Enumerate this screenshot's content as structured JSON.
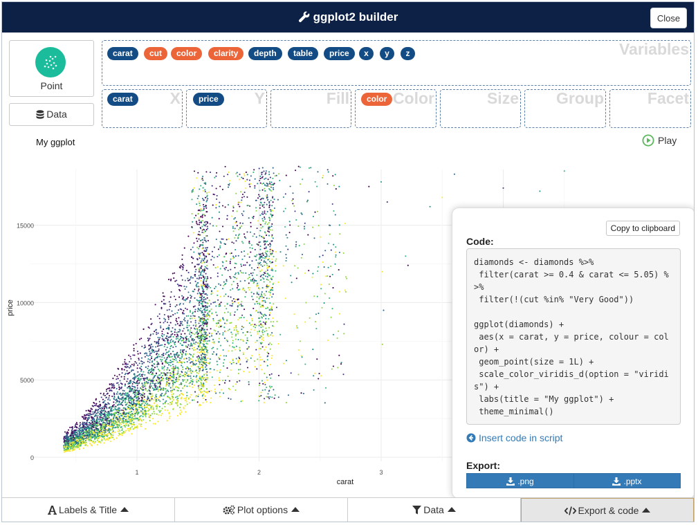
{
  "header": {
    "title": "ggplot2 builder",
    "close_label": "Close"
  },
  "left": {
    "geom_label": "Point",
    "data_label": "Data"
  },
  "zones": {
    "variables_title": "Variables",
    "x_title": "X",
    "y_title": "Y",
    "fill_title": "Fill",
    "color_title": "Color",
    "size_title": "Size",
    "group_title": "Group",
    "facet_title": "Facet"
  },
  "variables": [
    {
      "name": "carat",
      "kind": "numeric"
    },
    {
      "name": "cut",
      "kind": "categorical"
    },
    {
      "name": "color",
      "kind": "categorical"
    },
    {
      "name": "clarity",
      "kind": "categorical"
    },
    {
      "name": "depth",
      "kind": "numeric"
    },
    {
      "name": "table",
      "kind": "numeric"
    },
    {
      "name": "price",
      "kind": "numeric"
    },
    {
      "name": "x",
      "kind": "numeric"
    },
    {
      "name": "y",
      "kind": "numeric"
    },
    {
      "name": "z",
      "kind": "numeric"
    }
  ],
  "mapped": {
    "x": "carat",
    "y": "price",
    "color": "color"
  },
  "plot": {
    "title": "My ggplot",
    "play_label": "Play"
  },
  "chart_data": {
    "type": "scatter",
    "title": "My ggplot",
    "xlabel": "carat",
    "ylabel": "price",
    "xlim": [
      0.4,
      5.05
    ],
    "ylim": [
      0,
      18800
    ],
    "x_ticks": [
      "1",
      "2",
      "3"
    ],
    "y_ticks": [
      "0",
      "5000",
      "10000",
      "15000"
    ],
    "y_tick_values": [
      0,
      5000,
      10000,
      15000
    ],
    "x_tick_values": [
      1,
      2,
      3
    ],
    "colors": [
      "#440154",
      "#443a83",
      "#31688e",
      "#21908c",
      "#35b779",
      "#8fd744",
      "#fde725"
    ],
    "grid": true,
    "legend": "none",
    "series_note_points": [
      [
        0.5,
        900
      ],
      [
        0.6,
        1300
      ],
      [
        0.7,
        2400
      ],
      [
        0.8,
        3000
      ],
      [
        0.9,
        3800
      ],
      [
        1.0,
        4800
      ],
      [
        1.1,
        5400
      ],
      [
        1.2,
        6200
      ],
      [
        1.5,
        9000
      ],
      [
        2.0,
        14000
      ],
      [
        2.5,
        16500
      ],
      [
        3.0,
        17500
      ],
      [
        3.5,
        17000
      ],
      [
        4.0,
        16500
      ],
      [
        4.5,
        18500
      ],
      [
        5.0,
        18000
      ]
    ]
  },
  "code_panel": {
    "copy_label": "Copy to clipboard",
    "code_label": "Code:",
    "code": "diamonds <- diamonds %>%\n filter(carat >= 0.4 & carat <= 5.05) %>%\n filter(!(cut %in% \"Very Good\"))\n\nggplot(diamonds) +\n aes(x = carat, y = price, colour = color) +\n geom_point(size = 1L) +\n scale_color_viridis_d(option = \"viridis\") +\n labs(title = \"My ggplot\") +\n theme_minimal()",
    "insert_label": "Insert code in script",
    "export_label": "Export:",
    "png_label": ".png",
    "pptx_label": ".pptx"
  },
  "bottom_tabs": [
    {
      "label": "Labels & Title"
    },
    {
      "label": "Plot options"
    },
    {
      "label": "Data"
    },
    {
      "label": "Export & code"
    }
  ]
}
